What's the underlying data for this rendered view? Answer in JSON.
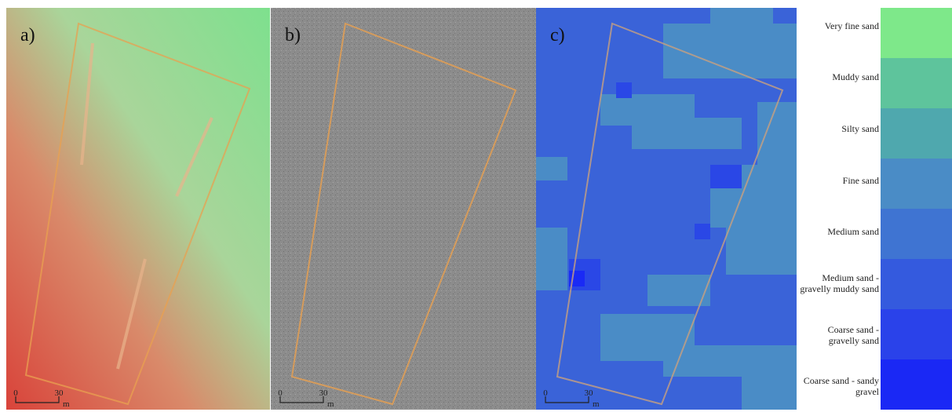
{
  "panels": [
    {
      "label": "a)",
      "scale": {
        "start": "0",
        "end": "30",
        "unit": "m"
      }
    },
    {
      "label": "b)",
      "scale": {
        "start": "0",
        "end": "30",
        "unit": "m"
      }
    },
    {
      "label": "c)",
      "scale": {
        "start": "0",
        "end": "30",
        "unit": "m"
      }
    }
  ],
  "legend": [
    {
      "label": "Very fine sand",
      "color": "#7ee88a"
    },
    {
      "label": "Muddy sand",
      "color": "#5ec49c"
    },
    {
      "label": "Silty sand",
      "color": "#4fa8ae"
    },
    {
      "label": "Fine sand",
      "color": "#4a8cc6"
    },
    {
      "label": "Medium sand",
      "color": "#3f74d2"
    },
    {
      "label": "Medium sand - gravelly muddy sand",
      "color": "#345ade"
    },
    {
      "label": "Coarse sand - gravelly sand",
      "color": "#2a42ea"
    },
    {
      "label": "Coarse sand - sandy gravel",
      "color": "#1a28f5"
    }
  ]
}
